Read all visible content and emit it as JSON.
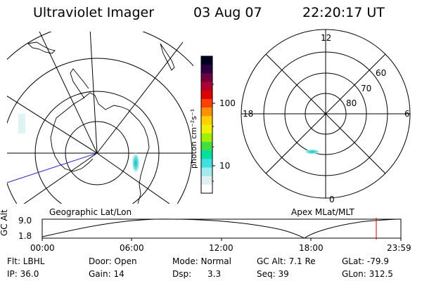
{
  "header": {
    "instrument": "Ultraviolet Imager",
    "date": "03 Aug 07",
    "time": "22:20:17 UT"
  },
  "left_map": {
    "label": "Geographic Lat/Lon"
  },
  "right_map": {
    "label": "Apex MLat/MLT",
    "mlt_labels": {
      "top": "12",
      "left": "18",
      "right": "6",
      "bottom": "0"
    },
    "lat_labels": [
      "60",
      "70",
      "80"
    ]
  },
  "colorbar": {
    "unit_label": "photon cm⁻²s⁻¹",
    "tick_labels": [
      "100",
      "10"
    ],
    "colors": [
      "#000020",
      "#2a0040",
      "#700040",
      "#b00030",
      "#e00000",
      "#ff4000",
      "#ff9000",
      "#ffd000",
      "#f0f000",
      "#a0f000",
      "#40e040",
      "#00e0a0",
      "#40e0e0",
      "#a0ecec",
      "#e0f0f0",
      "#ffffff"
    ]
  },
  "altitude_plot": {
    "ylabel": "GC Alt",
    "y_max_label": "9.0",
    "y_min_label": "1.8",
    "x_tick_labels": [
      "00:00",
      "06:00",
      "12:00",
      "18:00",
      "23:59"
    ],
    "marker_color": "#e00000"
  },
  "status": {
    "flt": "Flt: LBHL",
    "ip": "IP: 36.0",
    "door": "Door: Open",
    "gain": "Gain: 14",
    "mode": "Mode: Normal",
    "dsp": "Dsp:      3.3",
    "gc_alt": "GC Alt: 7.1 Re",
    "seq": "Seq: 39",
    "glat": "GLat: -79.9",
    "glon": "GLon: 312.5"
  }
}
